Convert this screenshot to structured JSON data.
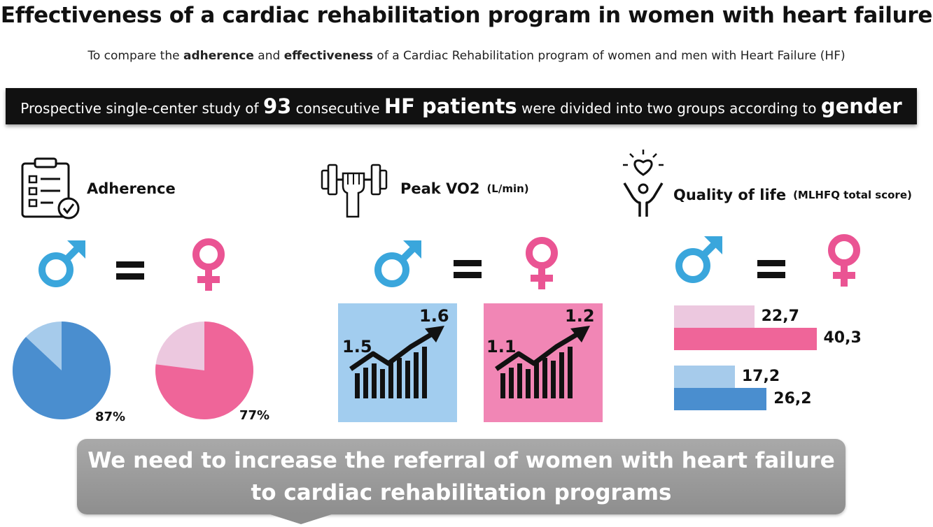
{
  "title": "Effectiveness of a cardiac rehabilitation program in women with heart failure",
  "subtitle": {
    "pre": "To compare the ",
    "b1": "adherence",
    "mid": " and ",
    "b2": "effectiveness",
    "post": " of a Cardiac Rehabilitation program of women and men with Heart Failure (HF)"
  },
  "banner": {
    "t1": "Prospective single-center study of ",
    "n": "93",
    "t2": " consecutive ",
    "hf": "HF patients",
    "t3": " were divided into two groups according to ",
    "g": "gender"
  },
  "adherence": {
    "label": "Adherence",
    "male_pct_label": "87%",
    "female_pct_label": "77%",
    "male_fraction": 0.87,
    "female_fraction": 0.77
  },
  "vo2": {
    "label": "Peak VO2",
    "unit": "(L/min)",
    "male_before": "1.5",
    "male_after": "1.6",
    "female_before": "1.1",
    "female_after": "1.2"
  },
  "qol": {
    "label": "Quality of life",
    "unit": "(MLHFQ  total score)",
    "women": [
      {
        "label": "22,7",
        "value": 22.7
      },
      {
        "label": "40,3",
        "value": 40.3
      }
    ],
    "men": [
      {
        "label": "17,2",
        "value": 17.2
      },
      {
        "label": "26,2",
        "value": 26.2
      }
    ]
  },
  "colors": {
    "male": "#3aa6dc",
    "female": "#ea5493",
    "male_dark": "#4a8ecf",
    "male_light": "#a6cbeb",
    "female_dark": "#ef6599",
    "female_light": "#ecc8df",
    "vo2_male_bg": "#a2cdef",
    "vo2_female_bg": "#f186b5"
  },
  "conclusion": {
    "line1": "We need to increase the referral of women with heart failure",
    "line2": "to cardiac rehabilitation programs"
  }
}
